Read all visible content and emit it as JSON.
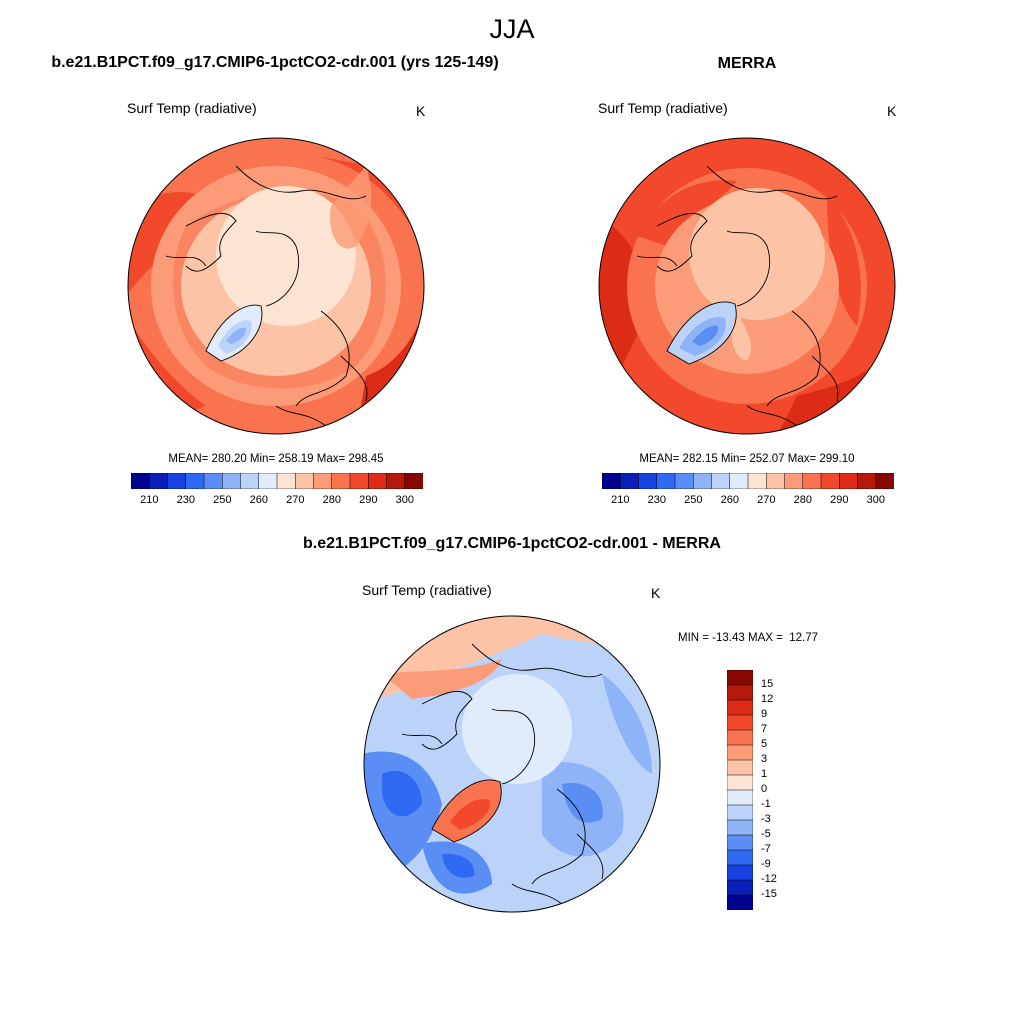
{
  "title": "JJA",
  "panels": [
    {
      "title": "b.e21.B1PCT.f09_g17.CMIP6-1pctCO2-cdr.001 (yrs 125-149)",
      "variable": "Surf Temp (radiative)",
      "units": "K",
      "stats": "MEAN= 280.20  Min= 258.19  Max= 298.45"
    },
    {
      "title": "MERRA",
      "variable": "Surf Temp (radiative)",
      "units": "K",
      "stats": "MEAN= 282.15  Min= 252.07  Max= 299.10"
    },
    {
      "title": "b.e21.B1PCT.f09_g17.CMIP6-1pctCO2-cdr.001 - MERRA",
      "variable": "Surf Temp (radiative)",
      "units": "K",
      "stats": "MIN = -13.43 MAX =  12.77"
    }
  ],
  "colorbar_abs": {
    "tick_labels": [
      "210",
      "230",
      "250",
      "260",
      "270",
      "280",
      "290",
      "300"
    ],
    "colors": [
      "#00008f",
      "#0a1fb8",
      "#1744e0",
      "#2f6bf2",
      "#5b8ef5",
      "#8fb3f7",
      "#bcd3f9",
      "#e1ecfb",
      "#fde4d2",
      "#fcc3a6",
      "#fb9b78",
      "#f9734f",
      "#f2492c",
      "#dc2c16",
      "#b4190b",
      "#870800"
    ]
  },
  "colorbar_diff": {
    "tick_labels": [
      "15",
      "12",
      "9",
      "7",
      "5",
      "3",
      "1",
      "0",
      "-1",
      "-3",
      "-5",
      "-7",
      "-9",
      "-12",
      "-15"
    ],
    "colors": [
      "#870800",
      "#b4190b",
      "#dc2c16",
      "#f2492c",
      "#f9734f",
      "#fb9b78",
      "#fcc3a6",
      "#fde4d2",
      "#e1ecfb",
      "#bcd3f9",
      "#8fb3f7",
      "#5b8ef5",
      "#2f6bf2",
      "#1744e0",
      "#0a1fb8",
      "#00008f"
    ]
  }
}
